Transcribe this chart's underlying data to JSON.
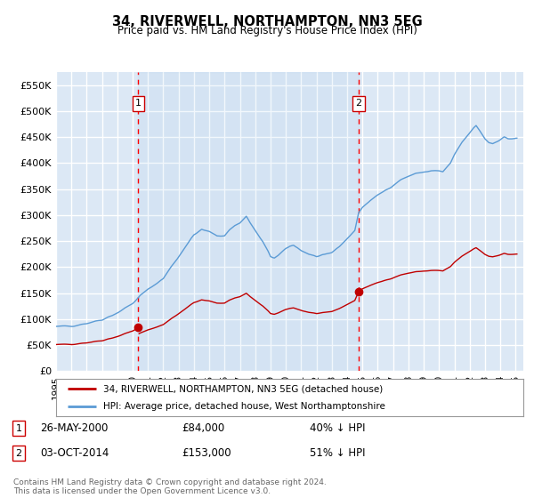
{
  "title": "34, RIVERWELL, NORTHAMPTON, NN3 5EG",
  "subtitle": "Price paid vs. HM Land Registry's House Price Index (HPI)",
  "ylim": [
    0,
    575000
  ],
  "yticks": [
    0,
    50000,
    100000,
    150000,
    200000,
    250000,
    300000,
    350000,
    400000,
    450000,
    500000,
    550000
  ],
  "ytick_labels": [
    "£0",
    "£50K",
    "£100K",
    "£150K",
    "£200K",
    "£250K",
    "£300K",
    "£350K",
    "£400K",
    "£450K",
    "£500K",
    "£550K"
  ],
  "background_color": "#dce8f5",
  "grid_color": "#ffffff",
  "line_color_hpi": "#5b9bd5",
  "line_color_price": "#c00000",
  "transaction1_x": 2000.37,
  "transaction1_y": 84000,
  "transaction2_x": 2014.75,
  "transaction2_y": 153000,
  "transaction1_date": "26-MAY-2000",
  "transaction1_price": "£84,000",
  "transaction1_note": "40% ↓ HPI",
  "transaction2_date": "03-OCT-2014",
  "transaction2_price": "£153,000",
  "transaction2_note": "51% ↓ HPI",
  "legend_line1": "34, RIVERWELL, NORTHAMPTON, NN3 5EG (detached house)",
  "legend_line2": "HPI: Average price, detached house, West Northamptonshire",
  "footnote": "Contains HM Land Registry data © Crown copyright and database right 2024.\nThis data is licensed under the Open Government Licence v3.0.",
  "xlim_left": 1995.0,
  "xlim_right": 2025.5
}
